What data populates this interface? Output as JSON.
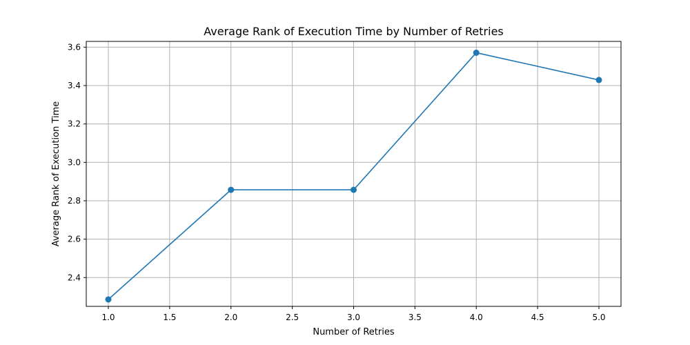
{
  "chart_data": {
    "type": "line",
    "title": "Average Rank of Execution Time by Number of Retries",
    "xlabel": "Number of Retries",
    "ylabel": "Average Rank of Execution Time",
    "xlim": [
      0.82,
      5.18
    ],
    "ylim": [
      2.25,
      3.63
    ],
    "x_ticks": [
      1.0,
      1.5,
      2.0,
      2.5,
      3.0,
      3.5,
      4.0,
      4.5,
      5.0
    ],
    "x_tick_labels": [
      "1.0",
      "1.5",
      "2.0",
      "2.5",
      "3.0",
      "3.5",
      "4.0",
      "4.5",
      "5.0"
    ],
    "y_ticks": [
      2.4,
      2.6,
      2.8,
      3.0,
      3.2,
      3.4,
      3.6
    ],
    "y_tick_labels": [
      "2.4",
      "2.6",
      "2.8",
      "3.0",
      "3.2",
      "3.4",
      "3.6"
    ],
    "grid": true,
    "legend": "none",
    "series": [
      {
        "color": "#1f77b4",
        "marker": "circle",
        "x": [
          1,
          2,
          3,
          4,
          5
        ],
        "y": [
          2.286,
          2.857,
          2.857,
          3.571,
          3.429
        ]
      }
    ]
  }
}
